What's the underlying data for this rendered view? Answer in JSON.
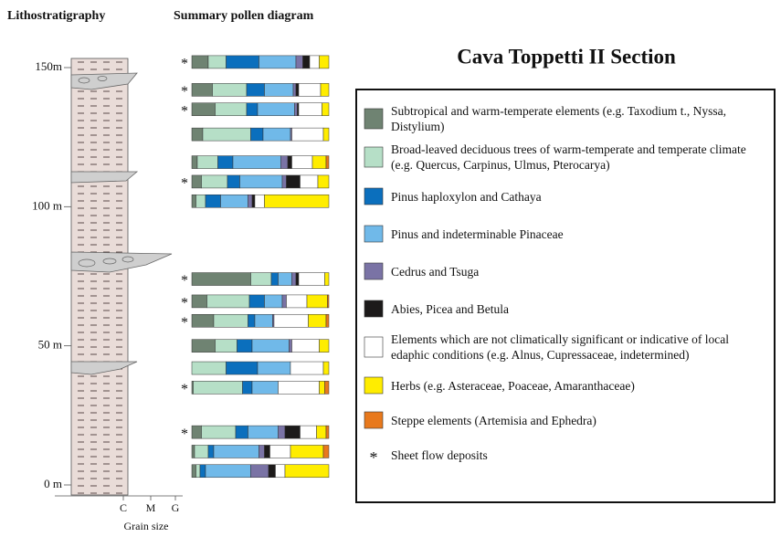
{
  "chart_data": {
    "type": "bar",
    "orientation": "horizontal",
    "stacked": true,
    "title": "Cava Toppetti II Section",
    "left_heading": "Lithostratigraphy",
    "heading": "Summary pollen diagram",
    "depths": [
      152,
      142,
      135,
      126,
      116,
      109,
      102,
      74,
      66,
      59,
      50,
      42,
      35,
      19,
      12,
      5
    ],
    "ylim": [
      0,
      150
    ],
    "yticks": [
      {
        "value": 150,
        "label": "150m"
      },
      {
        "value": 100,
        "label": "100 m"
      },
      {
        "value": 50,
        "label": "50 m"
      },
      {
        "value": 0,
        "label": "0 m"
      }
    ],
    "xlim": [
      0,
      100
    ],
    "grain_sizes": [
      "C",
      "M",
      "G"
    ],
    "grain_size_label": "Grain size",
    "sheet_flow_marker": "*",
    "sheet_flow_label": "Sheet flow deposits",
    "sheet_flow": [
      true,
      true,
      true,
      false,
      false,
      true,
      false,
      true,
      true,
      true,
      false,
      false,
      true,
      true,
      false,
      false
    ],
    "series": [
      {
        "name": "Subtropical and warm-temperate elements (e.g. Taxodium t., Nyssa, Distylium)",
        "color": "#6f8372",
        "values": [
          12,
          15,
          17,
          8,
          4,
          7,
          3,
          43,
          11,
          16,
          17,
          0,
          1,
          7,
          2,
          3
        ]
      },
      {
        "name": "Broad-leaved deciduous trees of warm-temperate and temperate climate (e.g. Quercus, Carpinus, Ulmus, Pterocarya)",
        "color": "#b6dfc7",
        "values": [
          13,
          25,
          23,
          35,
          15,
          19,
          7,
          15,
          31,
          25,
          16,
          25,
          36,
          25,
          10,
          3
        ]
      },
      {
        "name": "Pinus haploxylon and Cathaya",
        "color": "#0b6fbd",
        "values": [
          24,
          13,
          8,
          9,
          11,
          9,
          11,
          5,
          11,
          5,
          11,
          23,
          7,
          9,
          4,
          4
        ]
      },
      {
        "name": "Pinus and indeterminable Pinaceae",
        "color": "#70b9e9",
        "values": [
          27,
          21,
          27,
          20,
          35,
          31,
          20,
          10,
          13,
          13,
          27,
          24,
          19,
          22,
          33,
          33
        ]
      },
      {
        "name": "Cedrus and Tsuga",
        "color": "#7a73a5",
        "values": [
          5,
          2,
          2,
          1,
          5,
          3,
          3,
          3,
          3,
          1,
          2,
          0,
          0,
          5,
          4,
          13
        ]
      },
      {
        "name": "Abies, Picea and Betula",
        "color": "#1c1a1a",
        "values": [
          5,
          2,
          1,
          0,
          3,
          10,
          2,
          2,
          0,
          0,
          0,
          0,
          0,
          11,
          4,
          5
        ]
      },
      {
        "name": "Elements which are not climatically significant or indicative of local edaphic conditions (e.g. Alnus, Cupressaceae, indetermined)",
        "color": "#ffffff",
        "values": [
          7,
          16,
          17,
          23,
          15,
          13,
          7,
          19,
          15,
          25,
          20,
          24,
          30,
          12,
          15,
          7
        ]
      },
      {
        "name": "Herbs (e.g. Asteraceae, Poaceae, Amaranthaceae)",
        "color": "#ffed00",
        "values": [
          7,
          6,
          5,
          4,
          10,
          8,
          47,
          3,
          15,
          13,
          7,
          4,
          4,
          7,
          24,
          32
        ]
      },
      {
        "name": "Steppe elements (Artemisia and Ephedra)",
        "color": "#e8791d",
        "values": [
          0,
          0,
          0,
          0,
          2,
          0,
          0,
          0,
          1,
          2,
          0,
          0,
          3,
          2,
          4,
          0
        ]
      }
    ]
  }
}
